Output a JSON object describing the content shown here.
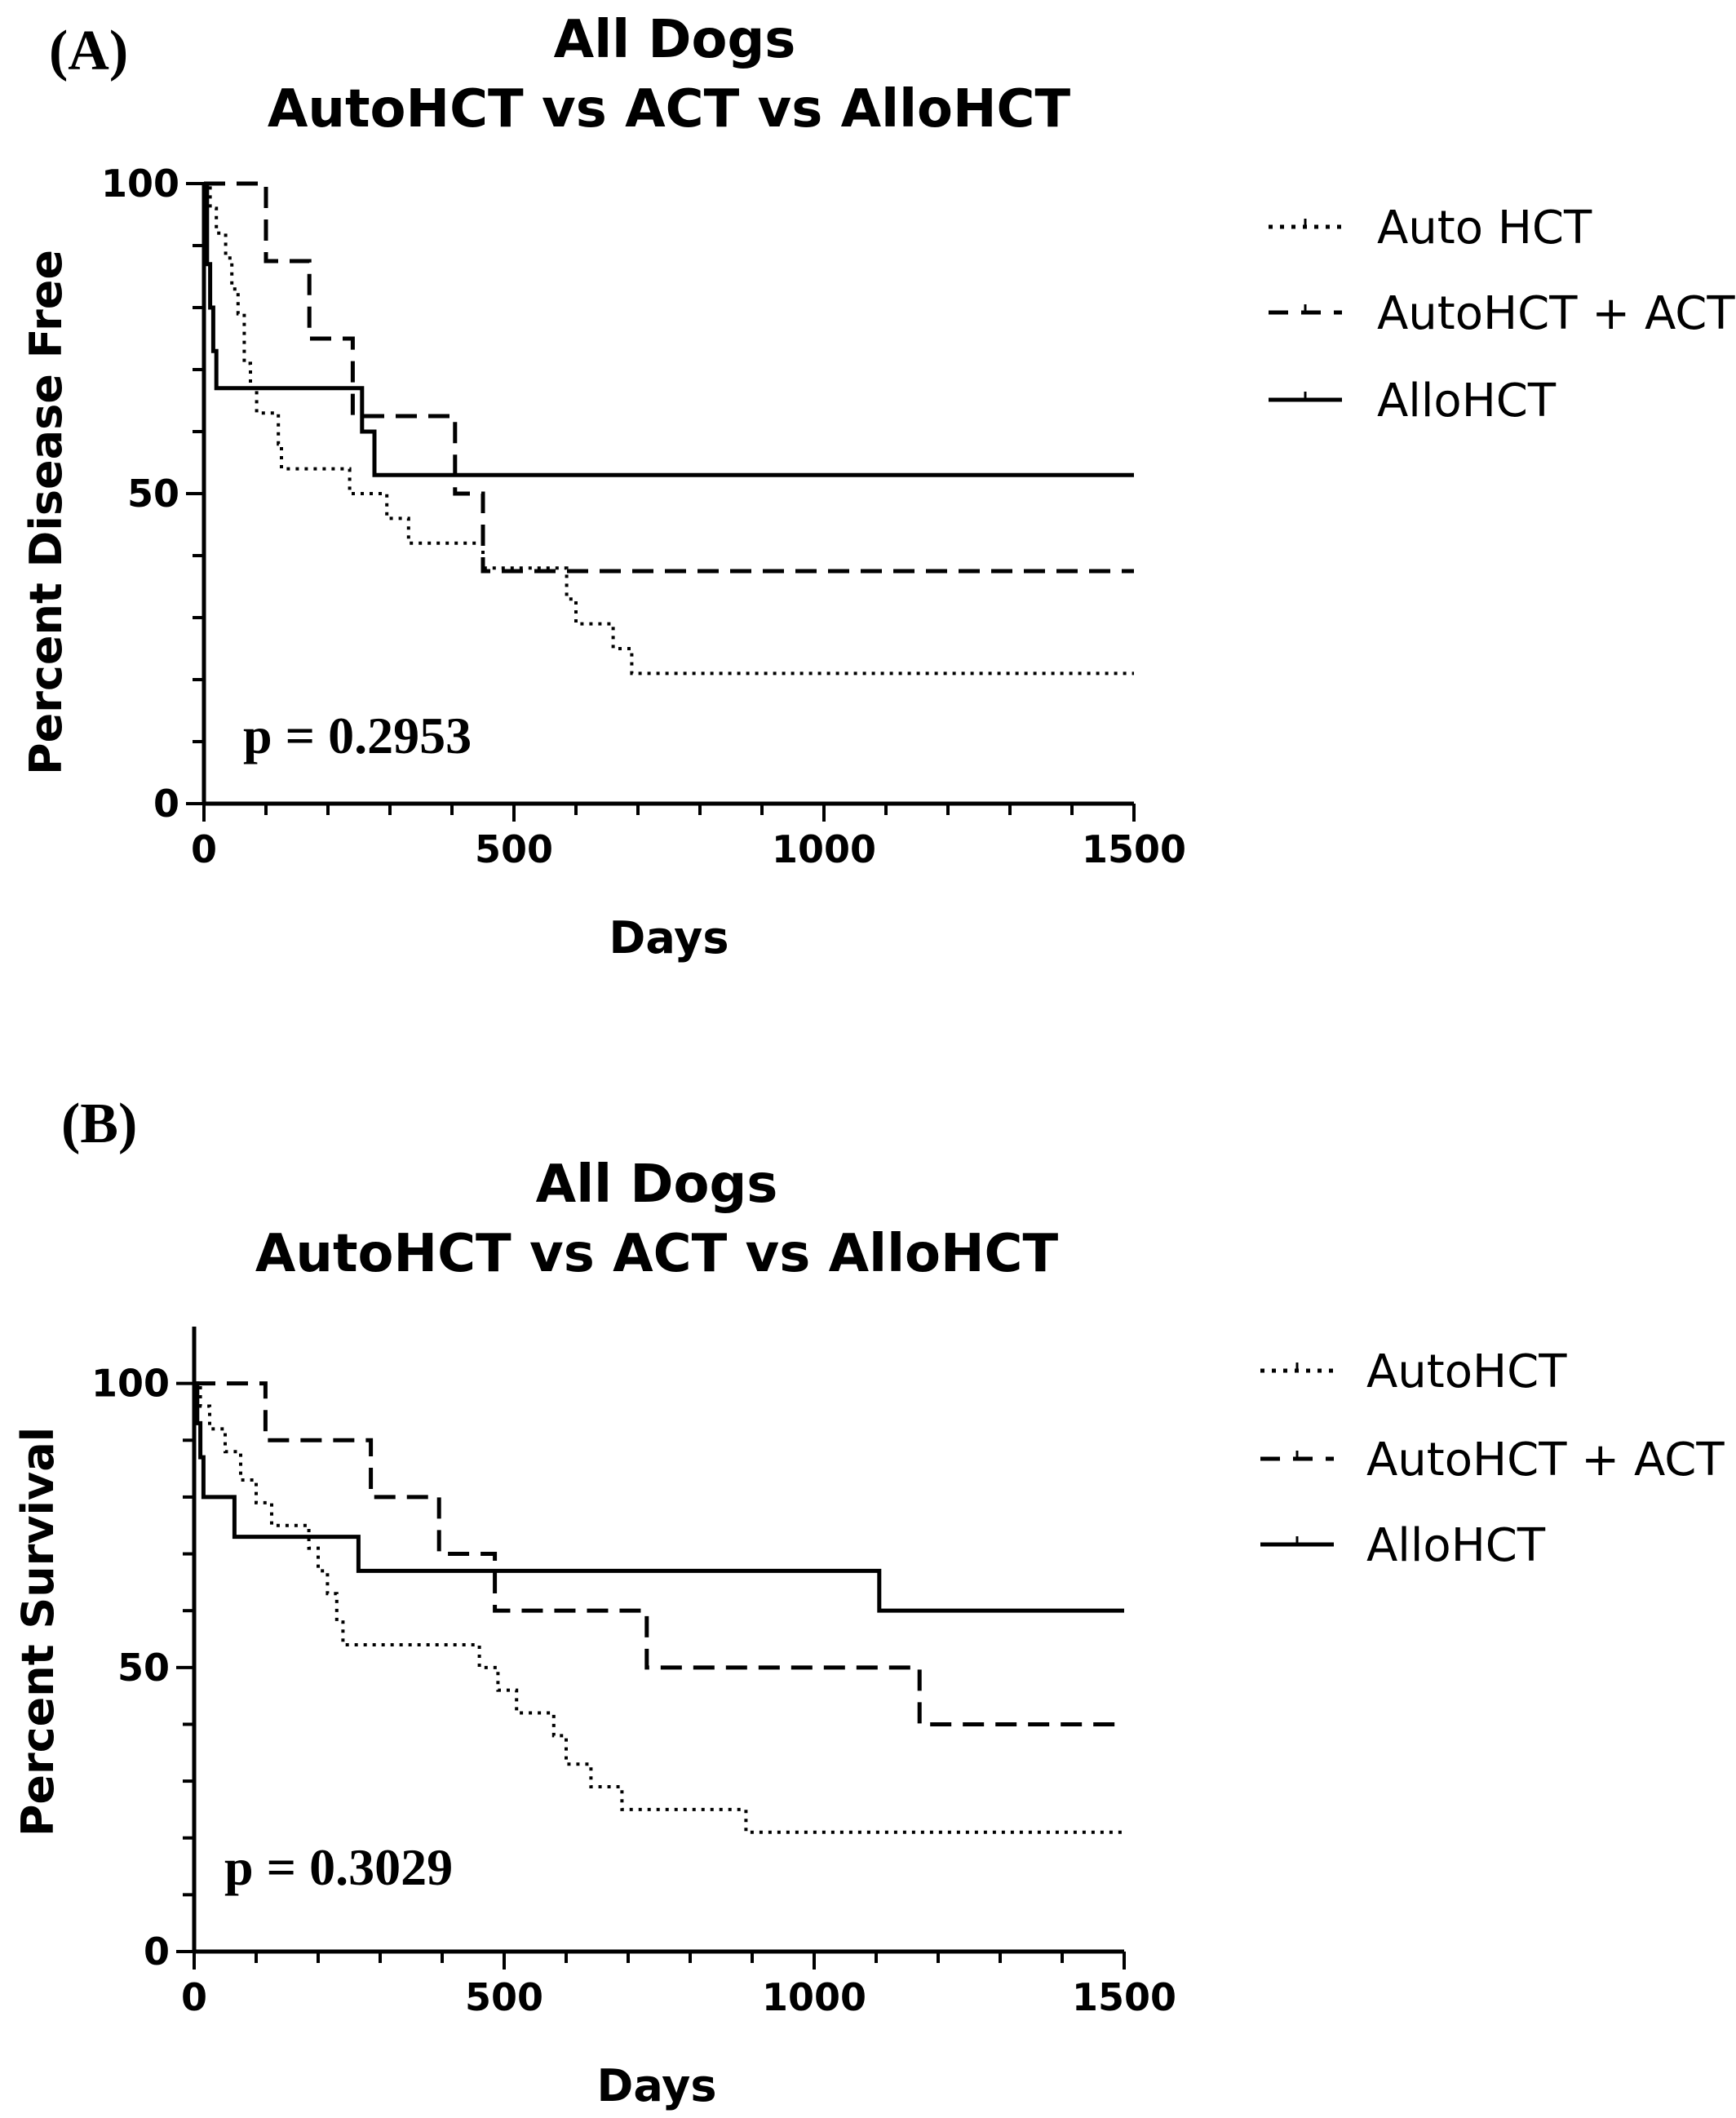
{
  "chart_data": [
    {
      "type": "line",
      "step": true,
      "panel_label": "(A)",
      "title_lines": [
        "All Dogs",
        "AutoHCT vs ACT vs AlloHCT"
      ],
      "xlabel": "Days",
      "ylabel": "Percent Disease Free",
      "xlim": [
        0,
        1500
      ],
      "ylim": [
        0,
        100
      ],
      "xticks": [
        "0",
        "500",
        "1000",
        "1500"
      ],
      "yticks": [
        "0",
        "50",
        "100"
      ],
      "annotation": "p = 0.2953",
      "legend_position": "right",
      "series": [
        {
          "name": "Auto HCT",
          "dash": "dotted",
          "points": [
            [
              0,
              100
            ],
            [
              10,
              96
            ],
            [
              20,
              92
            ],
            [
              35,
              88
            ],
            [
              45,
              83
            ],
            [
              55,
              79
            ],
            [
              65,
              71
            ],
            [
              75,
              67
            ],
            [
              85,
              63
            ],
            [
              120,
              58
            ],
            [
              125,
              54
            ],
            [
              235,
              50
            ],
            [
              295,
              46
            ],
            [
              330,
              42
            ],
            [
              445,
              42
            ],
            [
              450,
              38
            ],
            [
              580,
              38
            ],
            [
              585,
              33
            ],
            [
              600,
              29
            ],
            [
              660,
              25
            ],
            [
              690,
              21
            ],
            [
              1500,
              21
            ]
          ]
        },
        {
          "name": "AutoHCT + ACT",
          "dash": "dashed",
          "points": [
            [
              0,
              100
            ],
            [
              95,
              100
            ],
            [
              100,
              87.5
            ],
            [
              165,
              87.5
            ],
            [
              170,
              75
            ],
            [
              235,
              75
            ],
            [
              240,
              62.5
            ],
            [
              400,
              62.5
            ],
            [
              405,
              50
            ],
            [
              445,
              50
            ],
            [
              450,
              37.5
            ],
            [
              1500,
              37.5
            ]
          ]
        },
        {
          "name": "AlloHCT",
          "dash": "solid",
          "points": [
            [
              0,
              100
            ],
            [
              5,
              87
            ],
            [
              10,
              80
            ],
            [
              15,
              73
            ],
            [
              20,
              67
            ],
            [
              250,
              67
            ],
            [
              255,
              60
            ],
            [
              270,
              60
            ],
            [
              275,
              53
            ],
            [
              1500,
              53
            ]
          ]
        }
      ]
    },
    {
      "type": "line",
      "step": true,
      "panel_label": "(B)",
      "title_lines": [
        "All Dogs",
        "AutoHCT vs ACT vs AlloHCT"
      ],
      "xlabel": "Days",
      "ylabel": "Percent Survival",
      "xlim": [
        0,
        1500
      ],
      "ylim": [
        0,
        110
      ],
      "xticks": [
        "0",
        "500",
        "1000",
        "1500"
      ],
      "yticks": [
        "0",
        "50",
        "100"
      ],
      "annotation": "p = 0.3029",
      "legend_position": "right",
      "series": [
        {
          "name": "AutoHCT",
          "dash": "dotted",
          "points": [
            [
              0,
              100
            ],
            [
              10,
              96
            ],
            [
              25,
              92
            ],
            [
              50,
              88
            ],
            [
              75,
              83
            ],
            [
              100,
              79
            ],
            [
              125,
              75
            ],
            [
              175,
              75
            ],
            [
              185,
              71
            ],
            [
              200,
              67
            ],
            [
              215,
              63
            ],
            [
              230,
              58
            ],
            [
              240,
              54
            ],
            [
              440,
              54
            ],
            [
              460,
              50
            ],
            [
              490,
              46
            ],
            [
              520,
              42
            ],
            [
              580,
              38
            ],
            [
              600,
              33
            ],
            [
              640,
              29
            ],
            [
              690,
              25
            ],
            [
              880,
              25
            ],
            [
              890,
              21
            ],
            [
              1500,
              21
            ]
          ]
        },
        {
          "name": "AutoHCT + ACT",
          "dash": "dashed",
          "points": [
            [
              0,
              100
            ],
            [
              110,
              100
            ],
            [
              115,
              90
            ],
            [
              280,
              90
            ],
            [
              285,
              80
            ],
            [
              390,
              80
            ],
            [
              395,
              70
            ],
            [
              480,
              70
            ],
            [
              485,
              60
            ],
            [
              725,
              60
            ],
            [
              730,
              50
            ],
            [
              1165,
              50
            ],
            [
              1170,
              40
            ],
            [
              1500,
              40
            ]
          ]
        },
        {
          "name": "AlloHCT",
          "dash": "solid",
          "points": [
            [
              0,
              100
            ],
            [
              5,
              93
            ],
            [
              10,
              87
            ],
            [
              15,
              80
            ],
            [
              60,
              80
            ],
            [
              65,
              73
            ],
            [
              260,
              73
            ],
            [
              265,
              67
            ],
            [
              1100,
              67
            ],
            [
              1105,
              60
            ],
            [
              1500,
              60
            ]
          ]
        }
      ]
    }
  ]
}
